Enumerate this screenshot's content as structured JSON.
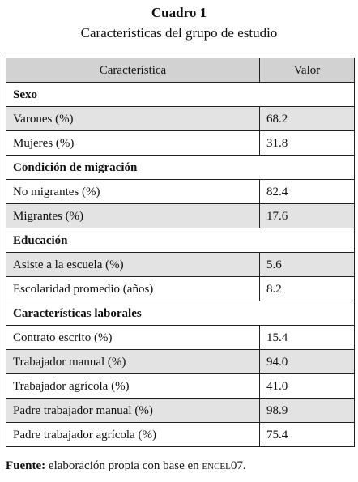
{
  "caption": {
    "title": "Cuadro 1",
    "subtitle": "Características del grupo de estudio"
  },
  "table": {
    "headers": [
      "Característica",
      "Valor"
    ],
    "rows": [
      {
        "kind": "section",
        "label": "Sexo"
      },
      {
        "kind": "shaded",
        "label": "Varones (%)",
        "value": "68.2"
      },
      {
        "kind": "plain",
        "label": "Mujeres (%)",
        "value": "31.8"
      },
      {
        "kind": "section",
        "label": "Condición de migración"
      },
      {
        "kind": "plain",
        "label": "No migrantes (%)",
        "value": "82.4"
      },
      {
        "kind": "shaded",
        "label": "Migrantes (%)",
        "value": "17.6"
      },
      {
        "kind": "section",
        "label": "Educación"
      },
      {
        "kind": "shaded",
        "label": "Asiste a la escuela (%)",
        "value": "5.6"
      },
      {
        "kind": "plain",
        "label": "Escolaridad promedio (años)",
        "value": "8.2"
      },
      {
        "kind": "section",
        "label": "Características laborales"
      },
      {
        "kind": "plain",
        "label": "Contrato escrito (%)",
        "value": "15.4"
      },
      {
        "kind": "shaded",
        "label": "Trabajador manual (%)",
        "value": "94.0"
      },
      {
        "kind": "plain",
        "label": "Trabajador agrícola (%)",
        "value": "41.0"
      },
      {
        "kind": "shaded",
        "label": "Padre trabajador manual (%)",
        "value": "98.9"
      },
      {
        "kind": "plain",
        "label": "Padre trabajador agrícola (%)",
        "value": "75.4"
      }
    ]
  },
  "footer": {
    "label": "Fuente:",
    "text": "elaboración propia con base en ",
    "source": "encel",
    "source_year": "07."
  }
}
